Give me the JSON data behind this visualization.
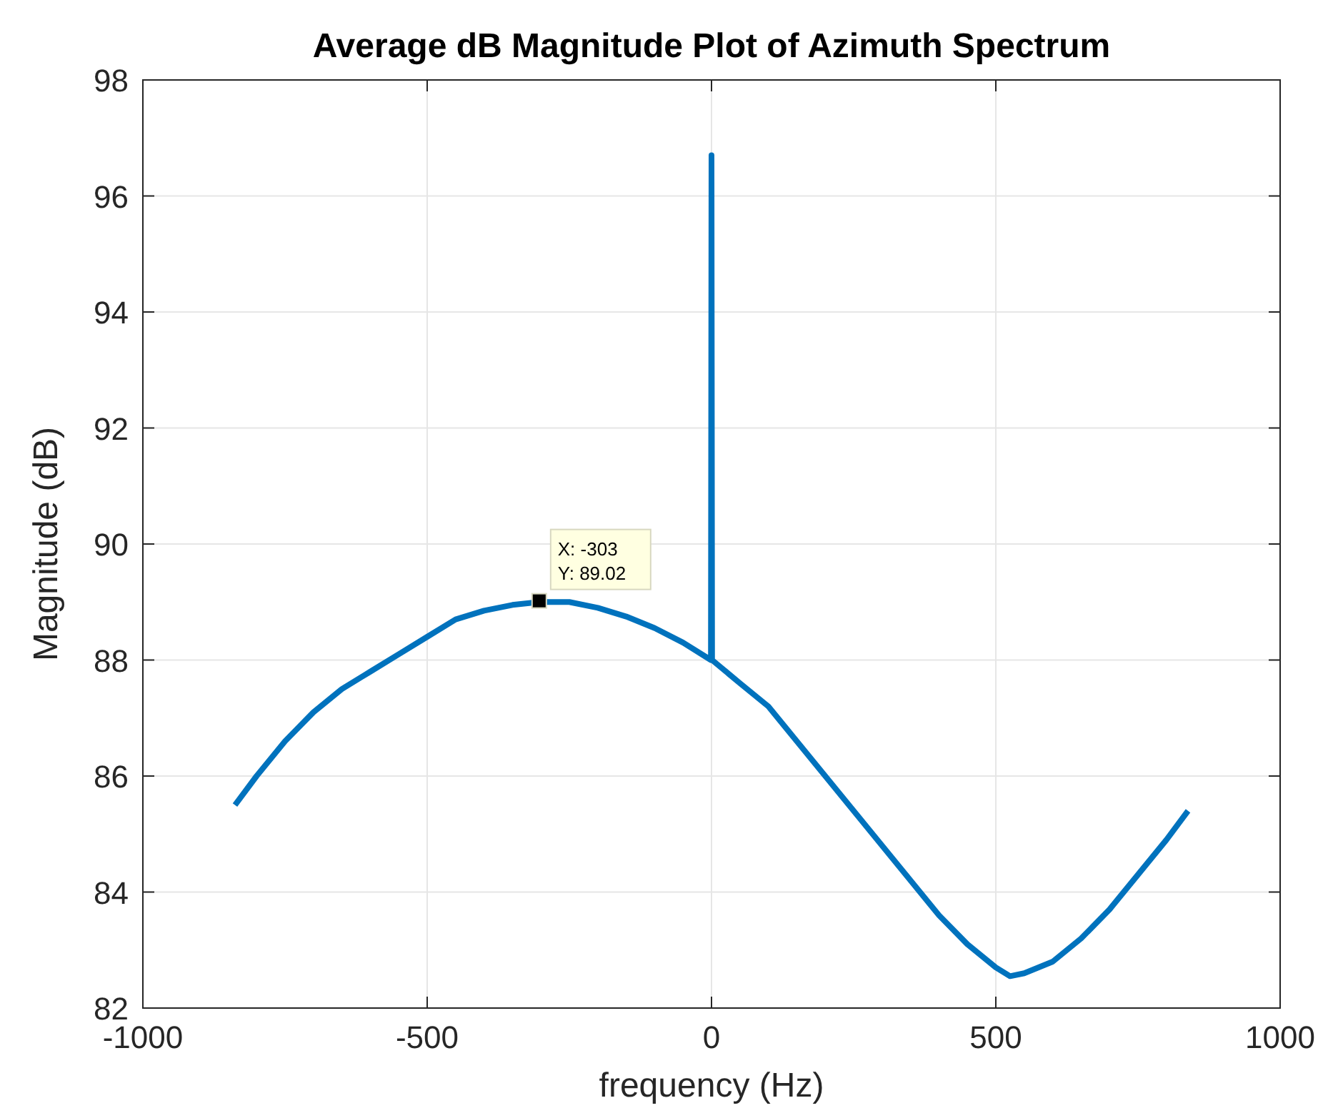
{
  "chart_data": {
    "type": "line",
    "title": "Average dB Magnitude Plot of Azimuth Spectrum",
    "xlabel": "frequency (Hz)",
    "ylabel": "Magnitude (dB)",
    "series": [
      {
        "color": "#0072bd",
        "x": [
          -838,
          -800,
          -750,
          -700,
          -650,
          -600,
          -550,
          -500,
          -450,
          -400,
          -350,
          -303,
          -250,
          -200,
          -150,
          -100,
          -50,
          -1,
          0,
          1,
          50,
          100,
          150,
          200,
          250,
          300,
          350,
          400,
          450,
          500,
          525,
          550,
          600,
          650,
          700,
          750,
          800,
          838
        ],
        "values": [
          85.5,
          86.0,
          86.6,
          87.1,
          87.5,
          87.8,
          88.1,
          88.4,
          88.7,
          88.85,
          88.95,
          89.0,
          89.0,
          88.9,
          88.75,
          88.55,
          88.3,
          88.0,
          96.7,
          88.0,
          87.6,
          87.2,
          86.6,
          86.0,
          85.4,
          84.8,
          84.2,
          83.6,
          83.1,
          82.7,
          82.55,
          82.6,
          82.8,
          83.2,
          83.7,
          84.3,
          84.9,
          85.4
        ]
      }
    ],
    "xlim": [
      -1000,
      1000
    ],
    "xticks": [
      -1000,
      -500,
      0,
      500,
      1000
    ],
    "ylim": [
      82,
      98
    ],
    "yticks": [
      82,
      84,
      86,
      88,
      90,
      92,
      94,
      96,
      98
    ],
    "grid": true,
    "marker": "none",
    "line_style": "solid",
    "annotations": [
      {
        "text": "X: -303\nY: 89.02",
        "x": -303,
        "y": 89.02
      }
    ]
  }
}
